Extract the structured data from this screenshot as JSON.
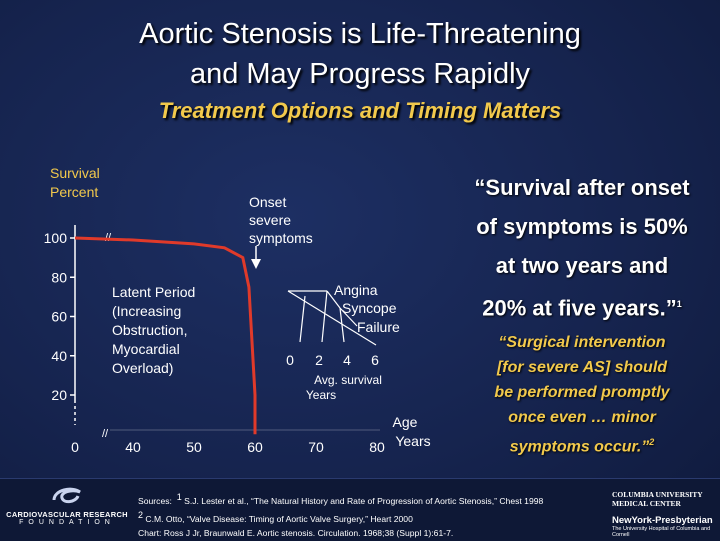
{
  "header": {
    "title_line1": "Aortic Stenosis is Life-Threatening",
    "title_line2": "and May Progress Rapidly",
    "subtitle": "Treatment Options and Timing Matters"
  },
  "chart_data": {
    "type": "line",
    "ylabel_line1": "Survival",
    "ylabel_line2": "Percent",
    "xlabel_line1": "Age",
    "xlabel_line2": "Years",
    "y_ticks": [
      "100",
      "80",
      "60",
      "40",
      "20"
    ],
    "x_ticks": [
      "0",
      "40",
      "50",
      "60",
      "70",
      "80"
    ],
    "ylim": [
      0,
      100
    ],
    "series": [
      {
        "x": [
          0,
          40,
          50,
          55,
          58,
          59,
          60,
          60
        ],
        "y": [
          100,
          99,
          97,
          95,
          90,
          75,
          20,
          0
        ]
      }
    ],
    "annotations": {
      "onset": [
        "Onset",
        "severe",
        "symptoms"
      ],
      "latent": [
        "Latent Period",
        "(Increasing",
        "Obstruction,",
        "Myocardial",
        "Overload)"
      ],
      "outcomes": [
        "Angina",
        "Syncope",
        "Failure"
      ],
      "avg_survival_ticks": [
        "0",
        "2",
        "4",
        "6"
      ],
      "avg_survival_label": [
        "Avg. survival",
        "Years"
      ]
    }
  },
  "quote": {
    "line1": "“Survival after onset",
    "line2": "of symptoms is 50%",
    "line3": "at two years and",
    "line4": "20% at five years.”",
    "ref": "1"
  },
  "quote2": {
    "line1": "“Surgical intervention",
    "line2": "[for severe AS] should",
    "line3": "be performed promptly",
    "line4": "once even … minor",
    "line5": "symptoms occur.”",
    "ref": "2"
  },
  "sources": {
    "label": "Sources:",
    "s1_ref": "1",
    "s1": "S.J. Lester et al., “The Natural History and Rate of Progression of Aortic Stenosis,” Chest 1998",
    "s2_ref": "2",
    "s2": "C.M. Otto, “Valve Disease: Timing of Aortic Valve Surgery,” Heart 2000",
    "s3": "Chart: Ross J Jr, Braunwald E. Aortic stenosis. Circulation. 1968;38 (Suppl 1):61-7."
  },
  "logos": {
    "cvrf_name": "CARDIOVASCULAR RESEARCH",
    "cvrf_fdn": "FOUNDATION",
    "cu_line1": "COLUMBIA UNIVERSITY",
    "cu_line2": "MEDICAL CENTER",
    "nyp_name": "NewYork-Presbyterian",
    "nyp_sub": "The University Hospital of Columbia and Cornell"
  },
  "colors": {
    "background": "#16244f",
    "curve": "#e03a2a",
    "subtitle": "#f2c94c",
    "text": "#ffffff"
  }
}
